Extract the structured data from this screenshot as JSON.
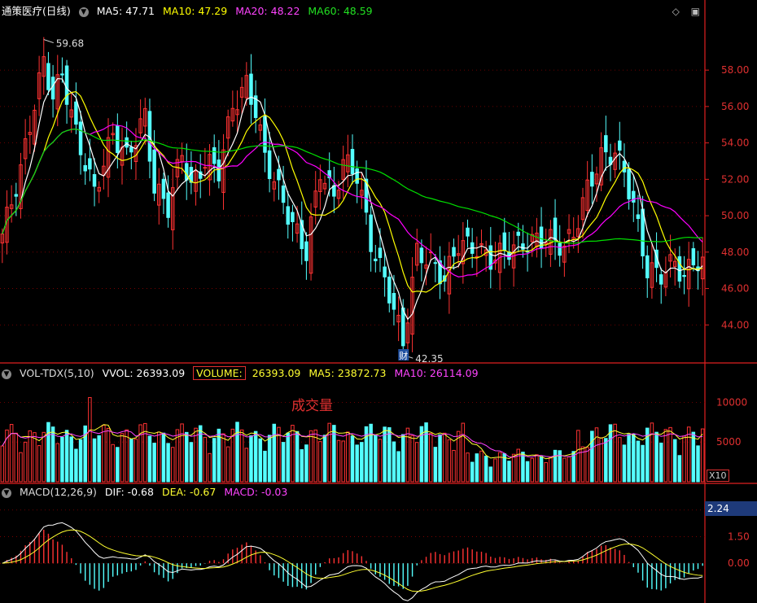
{
  "header": {
    "stock_name": "通策医疗(日线)",
    "ma5": "MA5: 47.71",
    "ma10": "MA10: 47.29",
    "ma20": "MA20: 48.22",
    "ma60": "MA60: 48.59"
  },
  "volume_header": {
    "indicator": "VOL-TDX(5,10)",
    "vvol": "VVOL: 26393.09",
    "volume_label": "VOLUME:",
    "volume_value": "26393.09",
    "ma5": "MA5: 23872.73",
    "ma10": "MA10: 26114.09"
  },
  "macd_header": {
    "indicator": "MACD(12,26,9)",
    "dif": "DIF: -0.68",
    "dea": "DEA: -0.67",
    "macd": "MACD: -0.03"
  },
  "annotation": "成交量",
  "x10_label": "X10",
  "macd_current": "2.24",
  "high_label": "59.68",
  "low_label": "42.35",
  "event_marker": "财",
  "colors": {
    "up": "#ff3232",
    "down": "#54ffff",
    "ma5": "#ffffff",
    "ma10": "#ffff00",
    "ma20": "#ff00ff",
    "ma60": "#00e000",
    "grid": "#8b0000",
    "axis": "#e02020"
  },
  "chart_data": {
    "type": "candlestick",
    "price_ticks": [
      44.0,
      46.0,
      48.0,
      50.0,
      52.0,
      54.0,
      56.0,
      58.0
    ],
    "price_range": [
      42.0,
      60.6
    ],
    "volume_ticks": [
      5000,
      10000
    ],
    "volume_range": [
      0,
      12500
    ],
    "macd_ticks": [
      0.0,
      1.5,
      3.0
    ],
    "macd_range": [
      -2.1,
      3.4
    ],
    "anchors": [
      {
        "i": 0,
        "c": 49.0
      },
      {
        "i": 4,
        "c": 52.5
      },
      {
        "i": 6,
        "c": 55.0
      },
      {
        "i": 9,
        "c": 58.5
      },
      {
        "i": 11,
        "c": 56.5
      },
      {
        "i": 13,
        "c": 57.8
      },
      {
        "i": 16,
        "c": 54.5
      },
      {
        "i": 20,
        "c": 51.3
      },
      {
        "i": 24,
        "c": 54.5
      },
      {
        "i": 27,
        "c": 53.2
      },
      {
        "i": 31,
        "c": 55.5
      },
      {
        "i": 33,
        "c": 51.5
      },
      {
        "i": 36,
        "c": 50.5
      },
      {
        "i": 39,
        "c": 53.5
      },
      {
        "i": 41,
        "c": 51.5
      },
      {
        "i": 44,
        "c": 53.0
      },
      {
        "i": 47,
        "c": 52.5
      },
      {
        "i": 50,
        "c": 56.0
      },
      {
        "i": 53,
        "c": 57.2
      },
      {
        "i": 55,
        "c": 55.8
      },
      {
        "i": 57,
        "c": 53.2
      },
      {
        "i": 59,
        "c": 52.0
      },
      {
        "i": 63,
        "c": 49.5
      },
      {
        "i": 66,
        "c": 48.0
      },
      {
        "i": 69,
        "c": 52.5
      },
      {
        "i": 72,
        "c": 51.0
      },
      {
        "i": 74,
        "c": 53.0
      },
      {
        "i": 77,
        "c": 52.3
      },
      {
        "i": 80,
        "c": 48.5
      },
      {
        "i": 84,
        "c": 45.8
      },
      {
        "i": 87,
        "c": 43.0
      },
      {
        "i": 90,
        "c": 48.0
      },
      {
        "i": 93,
        "c": 47.5
      },
      {
        "i": 96,
        "c": 46.5
      },
      {
        "i": 99,
        "c": 48.5
      },
      {
        "i": 103,
        "c": 48.2
      },
      {
        "i": 106,
        "c": 47.6
      },
      {
        "i": 110,
        "c": 48.2
      },
      {
        "i": 114,
        "c": 48.5
      },
      {
        "i": 118,
        "c": 48.8
      },
      {
        "i": 122,
        "c": 48.3
      },
      {
        "i": 124,
        "c": 49.0
      },
      {
        "i": 127,
        "c": 51.5
      },
      {
        "i": 130,
        "c": 53.2
      },
      {
        "i": 133,
        "c": 53.5
      },
      {
        "i": 135,
        "c": 52.5
      },
      {
        "i": 137,
        "c": 50.5
      },
      {
        "i": 140,
        "c": 47.0
      },
      {
        "i": 143,
        "c": 46.8
      },
      {
        "i": 146,
        "c": 47.5
      },
      {
        "i": 148,
        "c": 46.5
      },
      {
        "i": 150,
        "c": 47.6
      },
      {
        "i": 152,
        "c": 47.3
      }
    ],
    "candle_count": 153,
    "high_marker": {
      "index": 9,
      "value": 59.68
    },
    "low_marker": {
      "index": 87,
      "value": 42.35
    }
  }
}
